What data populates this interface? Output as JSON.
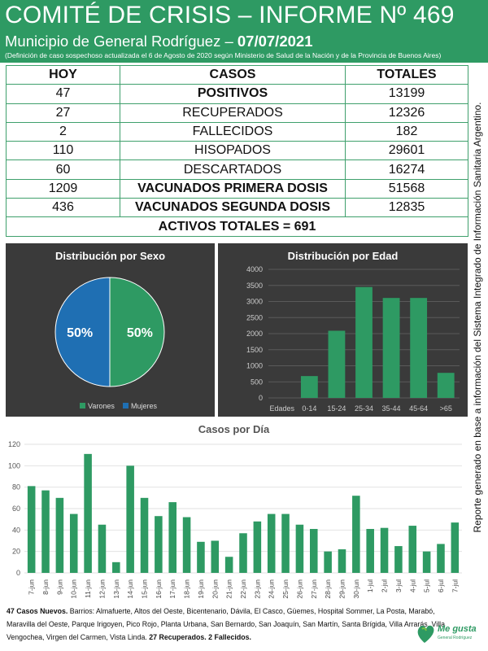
{
  "header": {
    "title": "COMITÉ DE CRISIS – INFORME Nº 469",
    "subtitle_prefix": "Municipio de General Rodríguez –",
    "date": "07/07/2021",
    "note": "(Definición de caso sospechoso actualizada el 6 de Agosto de 2020 según Ministerio de Salud de la Nación y de la Provincia de Buenos Aires)"
  },
  "table": {
    "headers": [
      "HOY",
      "CASOS",
      "TOTALES"
    ],
    "rows": [
      {
        "hoy": "47",
        "caso": "POSITIVOS",
        "total": "13199"
      },
      {
        "hoy": "27",
        "caso": "RECUPERADOS",
        "total": "12326"
      },
      {
        "hoy": "2",
        "caso": "FALLECIDOS",
        "total": "182"
      },
      {
        "hoy": "110",
        "caso": "HISOPADOS",
        "total": "29601"
      },
      {
        "hoy": "60",
        "caso": "DESCARTADOS",
        "total": "16274"
      },
      {
        "hoy": "1209",
        "caso": "VACUNADOS PRIMERA DOSIS",
        "total": "51568"
      },
      {
        "hoy": "436",
        "caso": "VACUNADOS SEGUNDA DOSIS",
        "total": "12835"
      }
    ],
    "activos": "ACTIVOS TOTALES = 691"
  },
  "colors": {
    "brand_green": "#2e9a63",
    "bar_green": "#2e9a63",
    "mujeres_blue": "#1f6fb3",
    "orange": "#e89a22",
    "panel_bg": "#3a3a3a"
  },
  "side_note": "Reporte generado en base a información del Sistema Integrado de Información Sanitaria Argentino.",
  "chart_data": [
    {
      "type": "pie",
      "title": "Distribución por Sexo",
      "labels": [
        "Varones",
        "Mujeres"
      ],
      "values": [
        50,
        50
      ],
      "value_labels": [
        "50%",
        "50%"
      ],
      "colors": [
        "#2e9a63",
        "#1f6fb3"
      ],
      "legend": "bottom"
    },
    {
      "type": "bar",
      "title": "Distribución por Edad",
      "categories": [
        "Edades",
        "0-14",
        "15-24",
        "25-34",
        "35-44",
        "45-64",
        ">65"
      ],
      "values": [
        0,
        680,
        2090,
        3450,
        3110,
        3110,
        780
      ],
      "ylim": [
        0,
        4000
      ],
      "yticks": [
        "0",
        "500",
        "1000",
        "1500",
        "2000",
        "2500",
        "3000",
        "3500",
        "4000"
      ],
      "grid": true
    },
    {
      "type": "bar",
      "title": "Casos por Día",
      "categories": [
        "7-jun",
        "8-jun",
        "9-jun",
        "10-jun",
        "11-jun",
        "12-jun",
        "13-jun",
        "14-jun",
        "15-jun",
        "16-jun",
        "17-jun",
        "18-jun",
        "19-jun",
        "20-jun",
        "21-jun",
        "22-jun",
        "23-jun",
        "24-jun",
        "25-jun",
        "26-jun",
        "27-jun",
        "28-jun",
        "29-jun",
        "30-jun",
        "1-jul",
        "2-jul",
        "3-jul",
        "4-jul",
        "5-jul",
        "6-jul",
        "7-jul"
      ],
      "values": [
        81,
        77,
        70,
        55,
        111,
        45,
        10,
        100,
        70,
        53,
        66,
        52,
        29,
        30,
        15,
        37,
        48,
        55,
        55,
        45,
        41,
        20,
        22,
        72,
        41,
        42,
        25,
        44,
        20,
        27,
        47
      ],
      "ylim": [
        0,
        120
      ],
      "yticks": [
        "0",
        "20",
        "40",
        "60",
        "80",
        "100",
        "120"
      ],
      "grid": true
    }
  ],
  "footer": {
    "bold_intro": "47 Casos Nuevos.",
    "barrios": " Barrios: Almafuerte, Altos del Oeste, Bicentenario, Dávila, El Casco, Güemes, Hospital Sommer, La Posta, Marabó, Maravilla del Oeste, Parque Irigoyen, Pico Rojo, Planta Urbana, San Bernardo, San Joaquín, San Martín, Santa Brígida, Villa Arrarás, Villa Vengochea, Virgen del Carmen, Vista Linda.",
    "bold_outro": " 27 Recuperados. 2 Fallecidos."
  },
  "logo": {
    "text": "Me gusta",
    "subtext": "General Rodríguez"
  }
}
